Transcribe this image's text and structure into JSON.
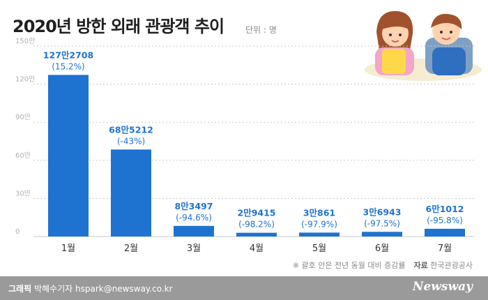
{
  "title": "2020년 방한 외래 관광객 추이",
  "unit": "단위 : 명",
  "note": "※ 괄호 안은 전년 동월 대비 증감률",
  "source_label": "자료",
  "source": "한국관광공사",
  "credit": {
    "role": "그래픽",
    "name": "박혜수기자",
    "email": "hspark@newsway.co.kr"
  },
  "brand": "Newsway",
  "colors": {
    "bar": "#1f73d0",
    "label": "#1f73d0",
    "grid": "#c8c8c8",
    "tick": "#b0b0b0"
  },
  "chart_data": {
    "type": "bar",
    "categories": [
      "1월",
      "2월",
      "3월",
      "4월",
      "5월",
      "6월",
      "7월"
    ],
    "values": [
      1272708,
      685212,
      83497,
      29415,
      30861,
      36943,
      61012
    ],
    "value_labels": [
      "127만2708",
      "68만5212",
      "8만3497",
      "2만9415",
      "3만861",
      "3만6943",
      "6만1012"
    ],
    "change_labels": [
      "(15.2%)",
      "(-43%)",
      "(-94.6%)",
      "(-98.2%)",
      "(-97.9%)",
      "(-97.5%)",
      "(-95.8%)"
    ],
    "yticks": [
      0,
      300000,
      600000,
      900000,
      1200000,
      1500000
    ],
    "ytick_labels": [
      "0",
      "30만",
      "60만",
      "90만",
      "120만",
      "150만"
    ],
    "ylim": [
      0,
      1500000
    ],
    "grid": true
  }
}
